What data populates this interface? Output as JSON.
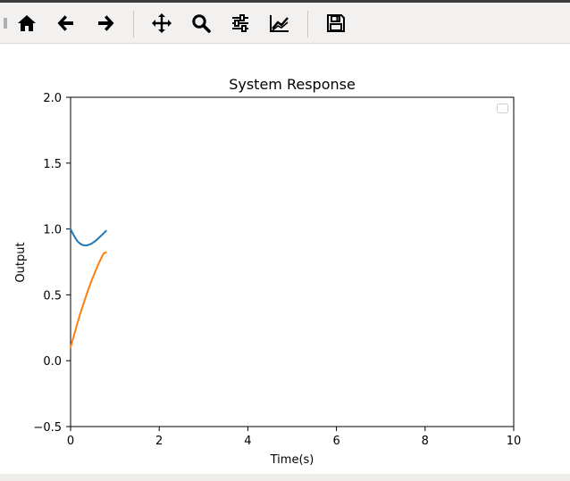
{
  "toolbar": {
    "buttons": [
      {
        "id": "home",
        "icon": "home-icon"
      },
      {
        "id": "back",
        "icon": "arrow-left-icon"
      },
      {
        "id": "forward",
        "icon": "arrow-right-icon"
      },
      {
        "id": "pan",
        "icon": "move-icon"
      },
      {
        "id": "zoom",
        "icon": "search-icon"
      },
      {
        "id": "subplots",
        "icon": "sliders-icon"
      },
      {
        "id": "axes-edit",
        "icon": "line-chart-icon"
      },
      {
        "id": "save",
        "icon": "save-icon"
      }
    ]
  },
  "chart_data": {
    "type": "line",
    "title": "System Response",
    "xlabel": "Time(s)",
    "ylabel": "Output",
    "xlim": [
      0,
      10
    ],
    "ylim": [
      -0.5,
      2.0
    ],
    "xticks": [
      0,
      2,
      4,
      6,
      8,
      10
    ],
    "xtick_labels": [
      "0",
      "2",
      "4",
      "6",
      "8",
      "10"
    ],
    "yticks": [
      -0.5,
      0.0,
      0.5,
      1.0,
      1.5,
      2.0
    ],
    "ytick_labels": [
      "−0.5",
      "0.0",
      "0.5",
      "1.0",
      "1.5",
      "2.0"
    ],
    "grid": false,
    "legend": {
      "placement": "top-right",
      "entries": []
    },
    "series": [
      {
        "color": "#1f77b4",
        "x": [
          0,
          0.05,
          0.1,
          0.15,
          0.2,
          0.25,
          0.3,
          0.35,
          0.4,
          0.45,
          0.5,
          0.55,
          0.6,
          0.65,
          0.7,
          0.75,
          0.8
        ],
        "y": [
          1.0,
          0.965,
          0.935,
          0.91,
          0.893,
          0.882,
          0.876,
          0.875,
          0.878,
          0.885,
          0.895,
          0.907,
          0.921,
          0.936,
          0.952,
          0.969,
          0.986
        ]
      },
      {
        "color": "#ff7f0e",
        "x": [
          0,
          0.05,
          0.1,
          0.15,
          0.2,
          0.25,
          0.3,
          0.35,
          0.4,
          0.45,
          0.5,
          0.55,
          0.6,
          0.65,
          0.7,
          0.75,
          0.8
        ],
        "y": [
          0.1,
          0.162,
          0.222,
          0.28,
          0.336,
          0.39,
          0.442,
          0.492,
          0.54,
          0.586,
          0.63,
          0.672,
          0.712,
          0.749,
          0.784,
          0.816,
          0.823
        ]
      }
    ]
  }
}
